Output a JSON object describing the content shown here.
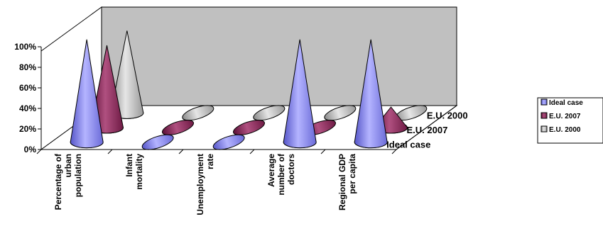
{
  "chart_data": {
    "type": "bar",
    "title": "",
    "xlabel": "",
    "ylabel": "",
    "ylim": [
      0,
      100
    ],
    "y_ticks": [
      "0%",
      "20%",
      "40%",
      "60%",
      "80%",
      "100%"
    ],
    "categories": [
      [
        "Percentage of",
        "urban",
        "population"
      ],
      [
        "Infant",
        "mortality"
      ],
      [
        "Unemployment",
        "rate"
      ],
      [
        "Average",
        "number of",
        "doctors"
      ],
      [
        "Regional GDP",
        "per capita"
      ]
    ],
    "series": [
      {
        "name": "Ideal case",
        "values": [
          100,
          0,
          0,
          100,
          100
        ],
        "color": "#8c8cf0"
      },
      {
        "name": "E.U. 2007",
        "values": [
          80,
          0,
          0,
          0,
          20
        ],
        "color": "#8b2252"
      },
      {
        "name": "E.U. 2000",
        "values": [
          80,
          0,
          0,
          0,
          0
        ],
        "color": "#c8c8c8"
      }
    ],
    "shape": "cone",
    "depth_axis_labels": [
      "Ideal case",
      "E.U. 2007",
      "E.U. 2000"
    ],
    "legend": {
      "position": "right",
      "entries": [
        "Ideal case",
        "E.U. 2007",
        "E.U. 2000"
      ]
    },
    "grid": false
  }
}
